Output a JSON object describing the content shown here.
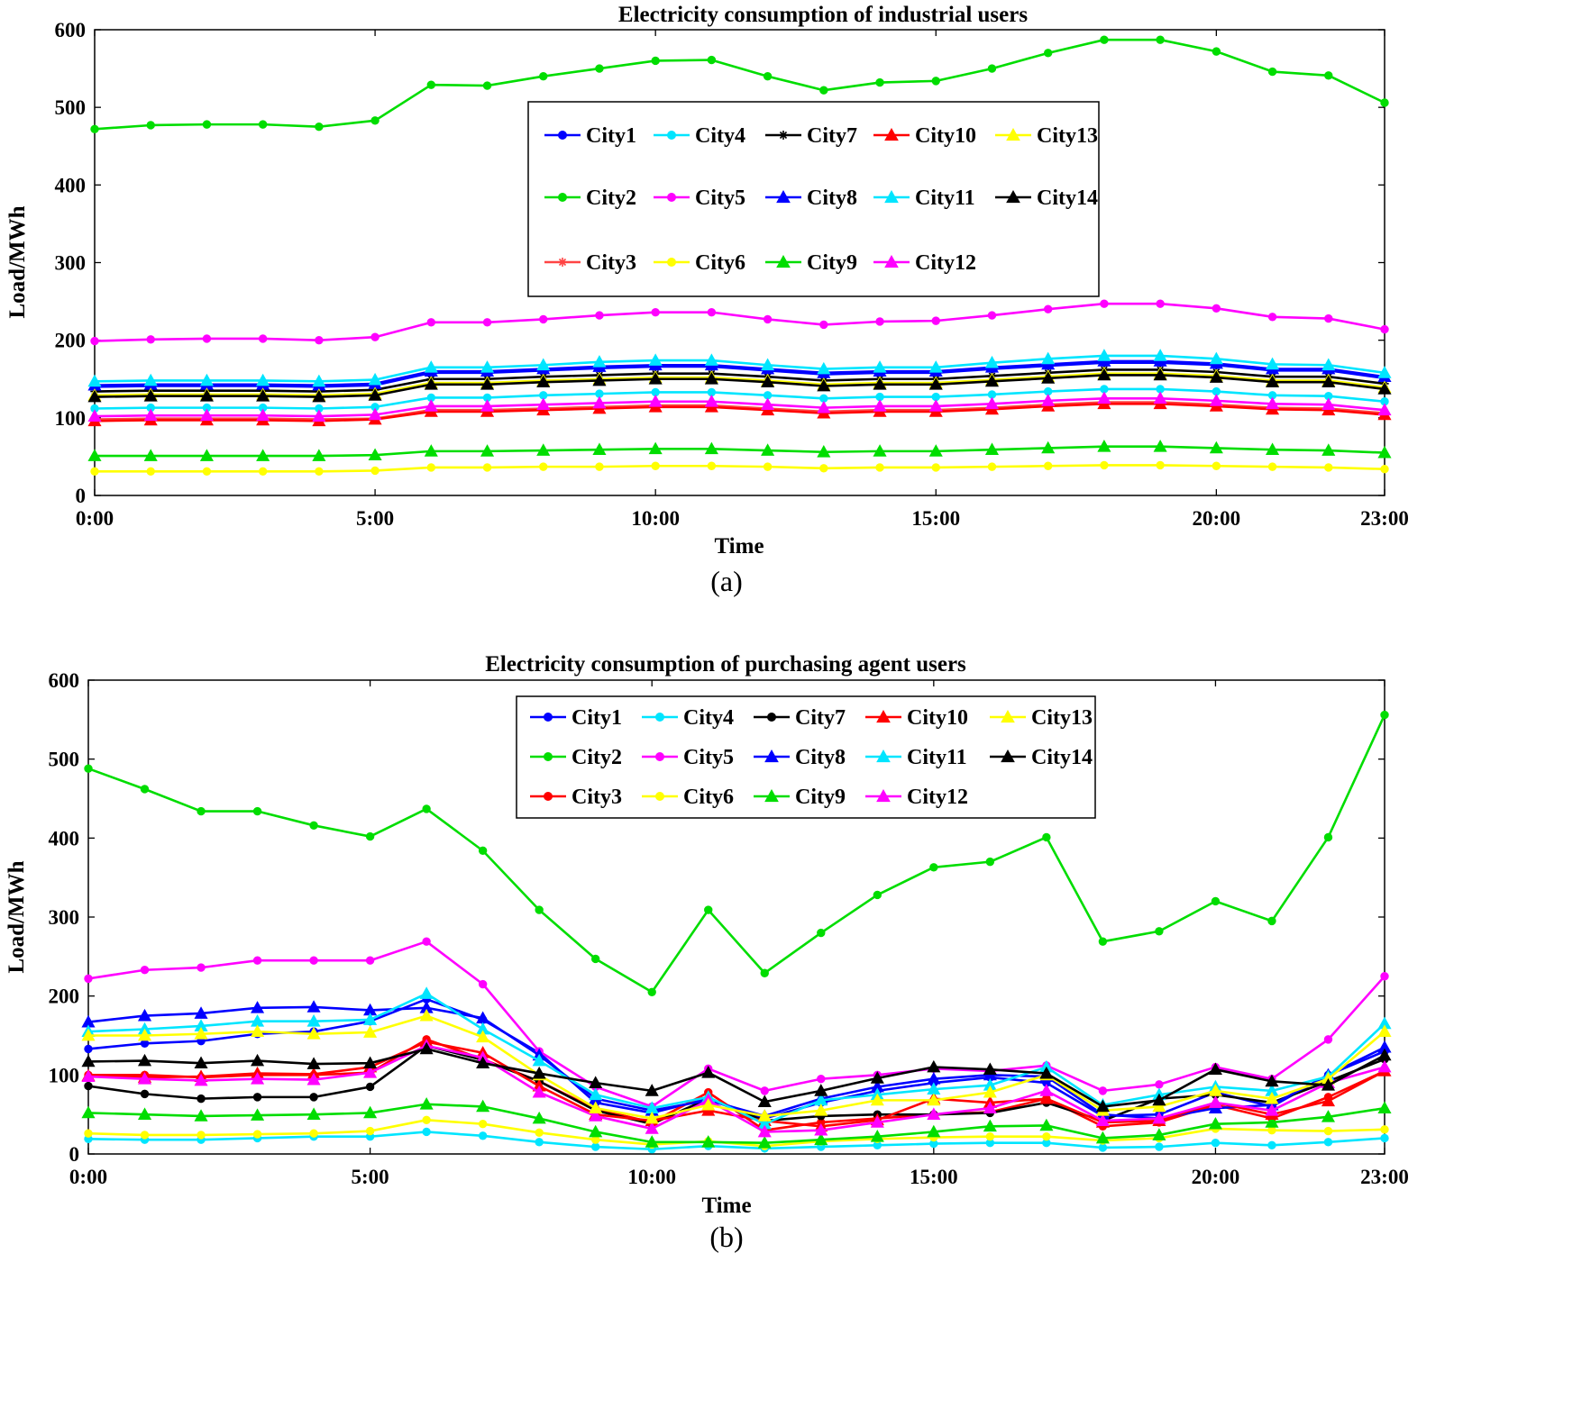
{
  "chart_data": [
    {
      "type": "line",
      "title": "Electricity consumption of industrial users",
      "xlabel": "Time",
      "ylabel": "Load/MWh",
      "caption": "(a)",
      "ylim": [
        0,
        600
      ],
      "xlim": [
        0,
        23
      ],
      "yticks": [
        0,
        100,
        200,
        300,
        400,
        500,
        600
      ],
      "xticks": [
        0,
        5,
        10,
        15,
        20,
        23
      ],
      "xtick_labels": [
        "0:00",
        "5:00",
        "10:00",
        "15:00",
        "20:00",
        "23:00"
      ],
      "legend_position": "top-center",
      "legend_rows": [
        [
          "City1",
          "City4",
          "City7",
          "City10",
          "City13"
        ],
        [
          "City2",
          "City5",
          "City8",
          "City11",
          "City14"
        ],
        [
          "City3",
          "City6",
          "City9",
          "City12"
        ]
      ],
      "series": [
        {
          "name": "City1",
          "color": "#0000ff",
          "marker": "dot",
          "values": [
            140,
            141,
            141,
            141,
            140,
            142,
            158,
            158,
            161,
            164,
            166,
            166,
            161,
            156,
            158,
            158,
            163,
            167,
            171,
            171,
            168,
            161,
            161,
            151
          ]
        },
        {
          "name": "City2",
          "color": "#00dd00",
          "marker": "dot",
          "values": [
            472,
            477,
            478,
            478,
            475,
            483,
            529,
            528,
            540,
            550,
            560,
            561,
            540,
            522,
            532,
            534,
            550,
            570,
            587,
            587,
            572,
            546,
            541,
            506
          ]
        },
        {
          "name": "City3",
          "color": "#ff4444",
          "marker": "star",
          "values": [
            98,
            99,
            99,
            99,
            98,
            99,
            110,
            110,
            112,
            114,
            116,
            116,
            112,
            108,
            110,
            110,
            113,
            117,
            120,
            120,
            117,
            113,
            112,
            106
          ]
        },
        {
          "name": "City4",
          "color": "#00e5ff",
          "marker": "dot",
          "values": [
            112,
            113,
            113,
            113,
            112,
            114,
            126,
            126,
            129,
            131,
            133,
            133,
            129,
            125,
            127,
            127,
            130,
            134,
            137,
            137,
            134,
            129,
            128,
            121
          ]
        },
        {
          "name": "City5",
          "color": "#ff00ff",
          "marker": "dot",
          "values": [
            199,
            201,
            202,
            202,
            200,
            204,
            223,
            223,
            227,
            232,
            236,
            236,
            227,
            220,
            224,
            225,
            232,
            240,
            247,
            247,
            241,
            230,
            228,
            214
          ]
        },
        {
          "name": "City6",
          "color": "#ffff00",
          "marker": "dot",
          "values": [
            31,
            31,
            31,
            31,
            31,
            32,
            36,
            36,
            37,
            37,
            38,
            38,
            37,
            35,
            36,
            36,
            37,
            38,
            39,
            39,
            38,
            37,
            36,
            34
          ]
        },
        {
          "name": "City7",
          "color": "#000000",
          "marker": "star",
          "values": [
            134,
            135,
            135,
            135,
            134,
            136,
            150,
            150,
            153,
            155,
            157,
            157,
            153,
            148,
            150,
            150,
            154,
            158,
            162,
            162,
            159,
            153,
            153,
            144
          ]
        },
        {
          "name": "City8",
          "color": "#0000ff",
          "marker": "triangle",
          "values": [
            142,
            143,
            143,
            143,
            142,
            144,
            160,
            160,
            163,
            166,
            168,
            168,
            163,
            158,
            160,
            160,
            165,
            169,
            173,
            173,
            170,
            163,
            163,
            153
          ]
        },
        {
          "name": "City9",
          "color": "#00dd00",
          "marker": "triangle",
          "values": [
            51,
            51,
            51,
            51,
            51,
            52,
            57,
            57,
            58,
            59,
            60,
            60,
            58,
            56,
            57,
            57,
            59,
            61,
            63,
            63,
            61,
            59,
            58,
            55
          ]
        },
        {
          "name": "City10",
          "color": "#ff0000",
          "marker": "triangle",
          "values": [
            96,
            97,
            97,
            97,
            96,
            98,
            108,
            108,
            110,
            112,
            114,
            114,
            110,
            106,
            108,
            108,
            111,
            115,
            118,
            118,
            115,
            111,
            110,
            104
          ]
        },
        {
          "name": "City11",
          "color": "#00e5ff",
          "marker": "triangle",
          "values": [
            147,
            148,
            148,
            148,
            147,
            149,
            165,
            165,
            168,
            172,
            174,
            174,
            168,
            163,
            165,
            165,
            171,
            176,
            180,
            180,
            176,
            169,
            168,
            158
          ]
        },
        {
          "name": "City12",
          "color": "#ff00ff",
          "marker": "triangle",
          "values": [
            102,
            103,
            103,
            103,
            102,
            104,
            115,
            115,
            117,
            119,
            121,
            121,
            117,
            113,
            115,
            115,
            118,
            122,
            125,
            125,
            122,
            118,
            117,
            110
          ]
        },
        {
          "name": "City13",
          "color": "#ffff00",
          "marker": "triangle",
          "values": [
            129,
            130,
            130,
            130,
            129,
            131,
            145,
            145,
            148,
            150,
            152,
            152,
            148,
            143,
            145,
            145,
            149,
            153,
            157,
            157,
            154,
            148,
            148,
            139
          ]
        },
        {
          "name": "City14",
          "color": "#000000",
          "marker": "triangle",
          "values": [
            127,
            128,
            128,
            128,
            127,
            129,
            143,
            143,
            146,
            148,
            150,
            150,
            146,
            141,
            143,
            143,
            147,
            151,
            155,
            155,
            152,
            146,
            146,
            137
          ]
        }
      ]
    },
    {
      "type": "line",
      "title": "Electricity consumption of purchasing agent users",
      "xlabel": "Time",
      "ylabel": "Load/MWh",
      "caption": "(b)",
      "ylim": [
        0,
        600
      ],
      "xlim": [
        0,
        23
      ],
      "yticks": [
        0,
        100,
        200,
        300,
        400,
        500,
        600
      ],
      "xticks": [
        0,
        5,
        10,
        15,
        20,
        23
      ],
      "xtick_labels": [
        "0:00",
        "5:00",
        "10:00",
        "15:00",
        "20:00",
        "23:00"
      ],
      "legend_position": "top-center",
      "legend_rows": [
        [
          "City1",
          "City4",
          "City7",
          "City10",
          "City13"
        ],
        [
          "City2",
          "City5",
          "City8",
          "City11",
          "City14"
        ],
        [
          "City3",
          "City6",
          "City9",
          "City12"
        ]
      ],
      "series": [
        {
          "name": "City1",
          "color": "#0000ff",
          "marker": "dot",
          "values": [
            133,
            140,
            143,
            152,
            155,
            168,
            196,
            170,
            128,
            65,
            52,
            70,
            45,
            65,
            80,
            90,
            97,
            90,
            48,
            50,
            78,
            60,
            100,
            130
          ]
        },
        {
          "name": "City2",
          "color": "#00dd00",
          "marker": "dot",
          "values": [
            488,
            462,
            434,
            434,
            416,
            402,
            437,
            384,
            309,
            247,
            205,
            309,
            229,
            280,
            328,
            363,
            370,
            401,
            269,
            282,
            320,
            295,
            401,
            556
          ]
        },
        {
          "name": "City3",
          "color": "#ff0000",
          "marker": "dot",
          "values": [
            100,
            100,
            97,
            100,
            100,
            103,
            145,
            120,
            92,
            57,
            40,
            78,
            30,
            40,
            45,
            50,
            53,
            70,
            35,
            40,
            62,
            45,
            72,
            105
          ]
        },
        {
          "name": "City4",
          "color": "#00e5ff",
          "marker": "dot",
          "values": [
            19,
            18,
            18,
            20,
            22,
            22,
            28,
            23,
            15,
            9,
            6,
            10,
            7,
            9,
            11,
            13,
            14,
            14,
            8,
            9,
            14,
            11,
            15,
            20
          ]
        },
        {
          "name": "City5",
          "color": "#ff00ff",
          "marker": "dot",
          "values": [
            222,
            233,
            236,
            245,
            245,
            245,
            269,
            215,
            130,
            85,
            60,
            108,
            80,
            95,
            100,
            108,
            105,
            112,
            80,
            88,
            110,
            95,
            145,
            225
          ]
        },
        {
          "name": "City6",
          "color": "#ffff00",
          "marker": "dot",
          "values": [
            26,
            24,
            24,
            25,
            26,
            29,
            43,
            38,
            27,
            18,
            12,
            16,
            10,
            16,
            19,
            21,
            22,
            22,
            17,
            20,
            32,
            30,
            29,
            31
          ]
        },
        {
          "name": "City7",
          "color": "#000000",
          "marker": "dot",
          "values": [
            86,
            76,
            70,
            72,
            72,
            85,
            137,
            119,
            92,
            55,
            38,
            70,
            42,
            48,
            50,
            50,
            52,
            65,
            42,
            70,
            75,
            65,
            92,
            120
          ]
        },
        {
          "name": "City8",
          "color": "#0000ff",
          "marker": "triangle",
          "values": [
            167,
            175,
            178,
            185,
            186,
            182,
            185,
            172,
            125,
            70,
            55,
            68,
            48,
            70,
            85,
            95,
            100,
            98,
            50,
            45,
            58,
            62,
            100,
            135
          ]
        },
        {
          "name": "City9",
          "color": "#00dd00",
          "marker": "triangle",
          "values": [
            52,
            50,
            48,
            49,
            50,
            52,
            63,
            60,
            45,
            28,
            15,
            15,
            14,
            18,
            22,
            28,
            35,
            36,
            20,
            24,
            38,
            40,
            47,
            58
          ]
        },
        {
          "name": "City10",
          "color": "#ff0000",
          "marker": "triangle",
          "values": [
            99,
            97,
            98,
            102,
            101,
            110,
            142,
            128,
            86,
            50,
            42,
            55,
            42,
            35,
            43,
            70,
            65,
            70,
            40,
            42,
            65,
            50,
            67,
            105
          ]
        },
        {
          "name": "City11",
          "color": "#00e5ff",
          "marker": "triangle",
          "values": [
            155,
            158,
            162,
            168,
            168,
            170,
            203,
            158,
            118,
            75,
            58,
            72,
            38,
            68,
            75,
            82,
            87,
            110,
            62,
            75,
            85,
            80,
            98,
            165
          ]
        },
        {
          "name": "City12",
          "color": "#ff00ff",
          "marker": "triangle",
          "values": [
            98,
            95,
            93,
            95,
            94,
            103,
            137,
            122,
            78,
            48,
            32,
            68,
            28,
            30,
            40,
            50,
            58,
            80,
            42,
            45,
            65,
            55,
            90,
            110
          ]
        },
        {
          "name": "City13",
          "color": "#ffff00",
          "marker": "triangle",
          "values": [
            150,
            150,
            152,
            155,
            152,
            154,
            175,
            148,
            100,
            58,
            45,
            62,
            48,
            55,
            68,
            68,
            78,
            100,
            55,
            60,
            80,
            70,
            95,
            155
          ]
        },
        {
          "name": "City14",
          "color": "#000000",
          "marker": "triangle",
          "values": [
            117,
            118,
            115,
            118,
            114,
            115,
            133,
            115,
            102,
            90,
            80,
            103,
            66,
            80,
            96,
            110,
            107,
            102,
            60,
            68,
            107,
            92,
            87,
            125
          ]
        }
      ]
    }
  ]
}
